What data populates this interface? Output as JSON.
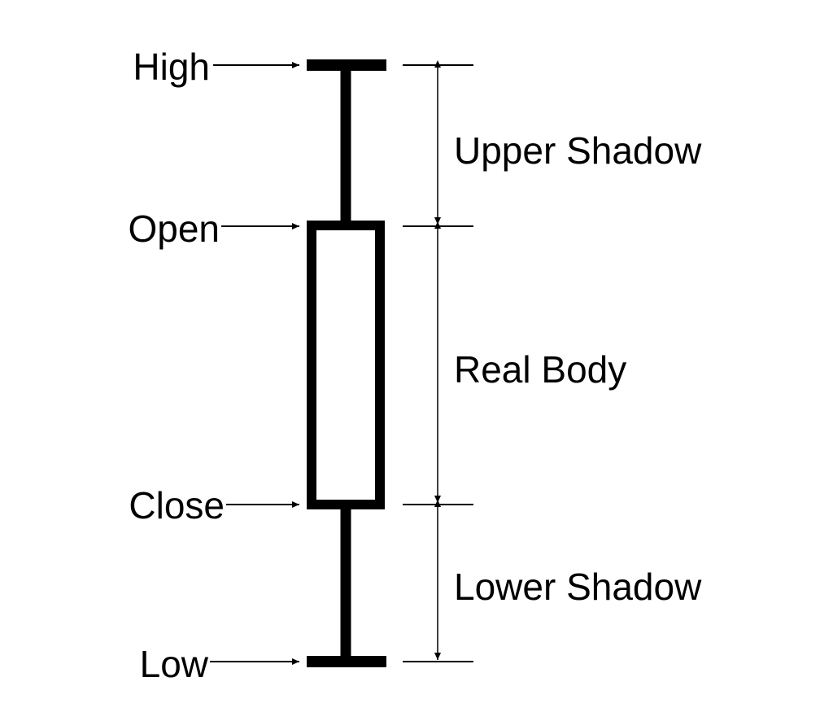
{
  "labels": {
    "high": "High",
    "open": "Open",
    "close": "Close",
    "low": "Low"
  },
  "segments": {
    "upper_shadow": "Upper Shadow",
    "real_body": "Real Body",
    "lower_shadow": "Lower Shadow"
  },
  "colors": {
    "stroke": "#000000",
    "background": "#ffffff"
  }
}
